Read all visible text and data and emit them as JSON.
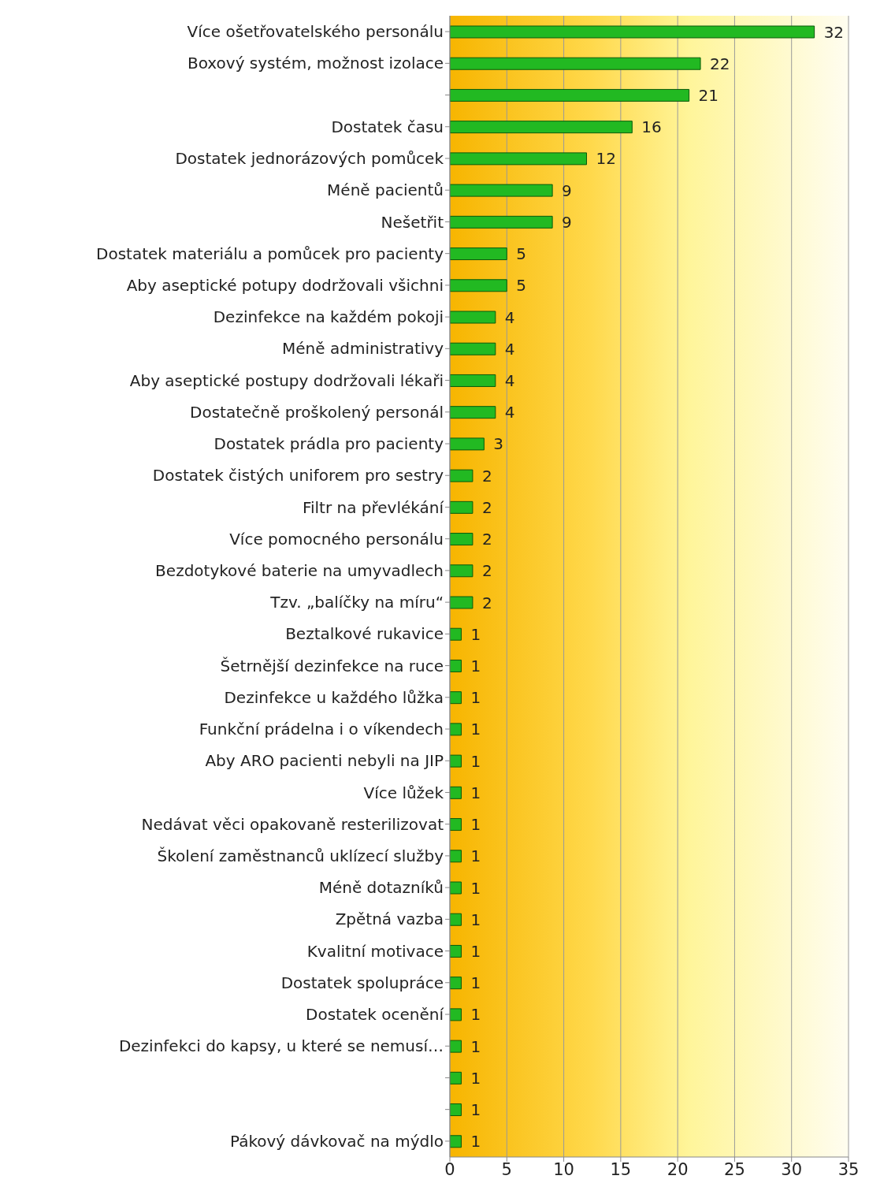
{
  "chart_data": {
    "type": "bar",
    "orientation": "horizontal",
    "categories": [
      "Více ošetřovatelského personálu",
      "Boxový systém, možnost izolace",
      null,
      "Dostatek času",
      "Dostatek jednorázových pomůcek",
      "Méně pacientů",
      "Nešetřit",
      "Dostatek materiálu a pomůcek pro pacienty",
      "Aby aseptické potupy dodržovali všichni",
      "Dezinfekce na každém pokoji",
      "Méně administrativy",
      "Aby aseptické postupy dodržovali lékaři",
      "Dostatečně proškolený personál",
      "Dostatek prádla pro pacienty",
      "Dostatek čistých uniforem pro sestry",
      "Filtr na převlékání",
      "Více pomocného personálu",
      "Bezdotykové baterie na umyvadlech",
      "Tzv. „balíčky na míru“",
      "Beztalkové rukavice",
      "Šetrnější dezinfekce na ruce",
      "Dezinfekce u každého lůžka",
      "Funkční prádelna i o víkendech",
      "Aby ARO pacienti nebyli na JIP",
      "Více lůžek",
      "Nedávat věci opakovaně resterilizovat",
      "Školení zaměstnanců uklízecí služby",
      "Méně dotazníků",
      "Zpětná vazba",
      "Kvalitní motivace",
      "Dostatek spolupráce",
      "Dostatek ocenění",
      "Dezinfekci do kapsy, u které se nemusí…",
      null,
      null,
      "Pákový dávkovač na mýdlo"
    ],
    "values": [
      32,
      22,
      21,
      16,
      12,
      9,
      9,
      5,
      5,
      4,
      4,
      4,
      4,
      3,
      2,
      2,
      2,
      2,
      2,
      1,
      1,
      1,
      1,
      1,
      1,
      1,
      1,
      1,
      1,
      1,
      1,
      1,
      1,
      1,
      1,
      1
    ],
    "color": "#22b922",
    "xlim": [
      0,
      35
    ],
    "xticks": [
      0,
      5,
      10,
      15,
      20,
      25,
      30,
      35
    ],
    "grid": "x",
    "data_labels": true
  }
}
